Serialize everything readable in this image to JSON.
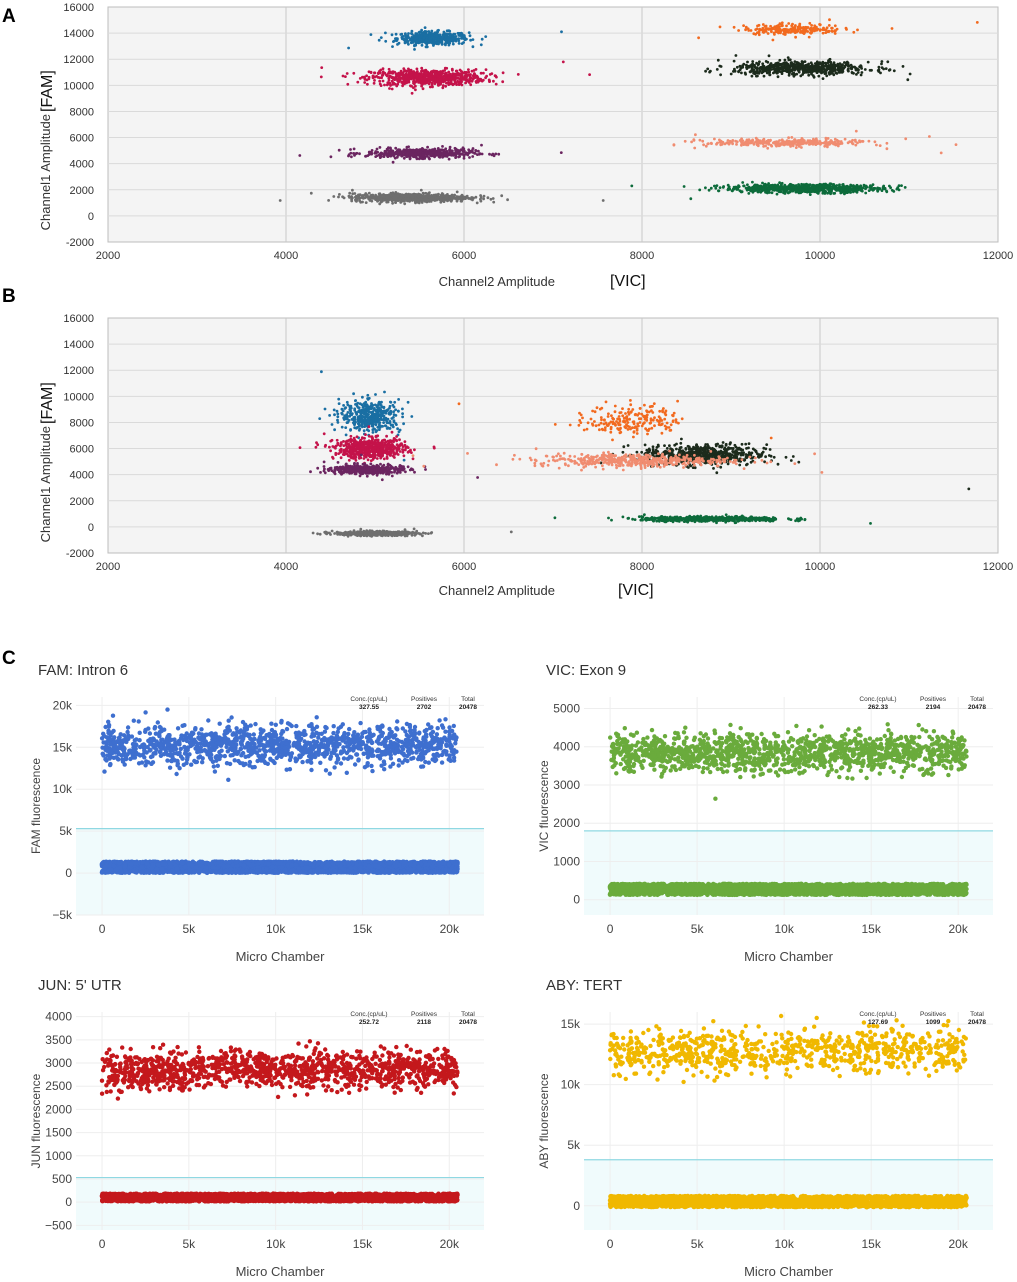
{
  "figure": {
    "panel_letters": [
      "A",
      "B",
      "C"
    ]
  },
  "chart_data": [
    {
      "panel": "A",
      "type": "scatter",
      "xlabel": "Channel2 Amplitude",
      "xlabel_suffix": "[VIC]",
      "ylabel": "Channel1 Amplitude",
      "ylabel_suffix": "[FAM]",
      "xlim": [
        2000,
        12000
      ],
      "ylim": [
        -2000,
        16000
      ],
      "xticks": [
        2000,
        4000,
        6000,
        8000,
        10000,
        12000
      ],
      "yticks": [
        -2000,
        0,
        2000,
        4000,
        6000,
        8000,
        10000,
        12000,
        14000,
        16000
      ],
      "grid": true,
      "clusters": [
        {
          "name": "blue",
          "color": "#1a6fa3",
          "x": 5650,
          "y": 13600,
          "sx": 200,
          "sy": 250,
          "n": 450
        },
        {
          "name": "crimson",
          "color": "#c4134a",
          "x": 5600,
          "y": 10600,
          "sx": 320,
          "sy": 300,
          "n": 700
        },
        {
          "name": "purple",
          "color": "#6b2560",
          "x": 5500,
          "y": 4800,
          "sx": 300,
          "sy": 180,
          "n": 500
        },
        {
          "name": "gray",
          "color": "#6e6e6e",
          "x": 5400,
          "y": 1400,
          "sx": 330,
          "sy": 160,
          "n": 700
        },
        {
          "name": "orange",
          "color": "#f26a1f",
          "x": 9700,
          "y": 14300,
          "sx": 280,
          "sy": 200,
          "n": 200
        },
        {
          "name": "black",
          "color": "#1c2b1c",
          "x": 9800,
          "y": 11300,
          "sx": 380,
          "sy": 250,
          "n": 600
        },
        {
          "name": "salmon",
          "color": "#f08c70",
          "x": 9600,
          "y": 5600,
          "sx": 450,
          "sy": 150,
          "n": 320
        },
        {
          "name": "green",
          "color": "#0d6b3b",
          "x": 9800,
          "y": 2100,
          "sx": 450,
          "sy": 160,
          "n": 700
        }
      ]
    },
    {
      "panel": "B",
      "type": "scatter",
      "xlabel": "Channel2 Amplitude",
      "xlabel_suffix": "[VIC]",
      "ylabel": "Channel1 Amplitude",
      "ylabel_suffix": "[FAM]",
      "xlim": [
        2000,
        12000
      ],
      "ylim": [
        -2000,
        16000
      ],
      "xticks": [
        2000,
        4000,
        6000,
        8000,
        10000,
        12000
      ],
      "yticks": [
        -2000,
        0,
        2000,
        4000,
        6000,
        8000,
        10000,
        12000,
        14000,
        16000
      ],
      "grid": true,
      "clusters": [
        {
          "name": "blue",
          "color": "#1a6fa3",
          "x": 4950,
          "y": 8500,
          "sx": 170,
          "sy": 600,
          "n": 420
        },
        {
          "name": "crimson",
          "color": "#c4134a",
          "x": 4950,
          "y": 6000,
          "sx": 200,
          "sy": 380,
          "n": 600
        },
        {
          "name": "purple",
          "color": "#6b2560",
          "x": 4900,
          "y": 4400,
          "sx": 200,
          "sy": 180,
          "n": 450
        },
        {
          "name": "gray",
          "color": "#6e6e6e",
          "x": 5000,
          "y": -500,
          "sx": 230,
          "sy": 80,
          "n": 500
        },
        {
          "name": "orange",
          "color": "#f26a1f",
          "x": 7900,
          "y": 8200,
          "sx": 260,
          "sy": 600,
          "n": 200
        },
        {
          "name": "black",
          "color": "#1c2b1c",
          "x": 8700,
          "y": 5500,
          "sx": 350,
          "sy": 400,
          "n": 600
        },
        {
          "name": "salmon",
          "color": "#f08c70",
          "x": 7900,
          "y": 5100,
          "sx": 550,
          "sy": 250,
          "n": 450
        },
        {
          "name": "green",
          "color": "#0d6b3b",
          "x": 8800,
          "y": 600,
          "sx": 400,
          "sy": 90,
          "n": 600
        }
      ]
    },
    {
      "panel": "C",
      "type": "scatter",
      "title": "FAM: Intron 6",
      "xlabel": "Micro Chamber",
      "ylabel": "FAM fluorescence",
      "xlim": [
        -1500,
        22000
      ],
      "ylim": [
        -5000,
        21000
      ],
      "xticks": [
        0,
        5000,
        10000,
        15000,
        20000
      ],
      "xticklabels": [
        "0",
        "5k",
        "10k",
        "15k",
        "20k"
      ],
      "yticks": [
        -5000,
        0,
        5000,
        10000,
        15000,
        20000
      ],
      "yticklabels": [
        "−5k",
        "0",
        "5k",
        "10k",
        "15k",
        "20k"
      ],
      "threshold": 5300,
      "color": "#3e6fcf",
      "positives_band": {
        "center": 15200,
        "spread": 2000,
        "n": 1300
      },
      "negatives_band": {
        "center": 700,
        "spread": 650,
        "n": 2400
      },
      "stats_labels": [
        "Conc.(cp/uL)",
        "Positives",
        "Total"
      ],
      "stats_values": [
        "327.55",
        "2702",
        "20478"
      ]
    },
    {
      "panel": "C",
      "type": "scatter",
      "title": "VIC: Exon 9",
      "xlabel": "Micro Chamber",
      "ylabel": "VIC fluorescence",
      "xlim": [
        -1500,
        22000
      ],
      "ylim": [
        -400,
        5300
      ],
      "xticks": [
        0,
        5000,
        10000,
        15000,
        20000
      ],
      "xticklabels": [
        "0",
        "5k",
        "10k",
        "15k",
        "20k"
      ],
      "yticks": [
        0,
        1000,
        2000,
        3000,
        4000,
        5000
      ],
      "yticklabels": [
        "0",
        "1000",
        "2000",
        "3000",
        "4000",
        "5000"
      ],
      "threshold": 1800,
      "color": "#6aab3c",
      "positives_band": {
        "center": 3850,
        "spread": 420,
        "n": 1300
      },
      "negatives_band": {
        "center": 270,
        "spread": 140,
        "n": 2400
      },
      "stats_labels": [
        "Conc.(cp/uL)",
        "Positives",
        "Total"
      ],
      "stats_values": [
        "262.33",
        "2194",
        "20478"
      ]
    },
    {
      "panel": "C",
      "type": "scatter",
      "title": "JUN: 5' UTR",
      "xlabel": "Micro Chamber",
      "ylabel": "JUN fluorescence",
      "xlim": [
        -1500,
        22000
      ],
      "ylim": [
        -600,
        4100
      ],
      "xticks": [
        0,
        5000,
        10000,
        15000,
        20000
      ],
      "xticklabels": [
        "0",
        "5k",
        "10k",
        "15k",
        "20k"
      ],
      "yticks": [
        -500,
        0,
        500,
        1000,
        1500,
        2000,
        2500,
        3000,
        3500,
        4000
      ],
      "yticklabels": [
        "−500",
        "0",
        "500",
        "1000",
        "1500",
        "2000",
        "2500",
        "3000",
        "3500",
        "4000"
      ],
      "threshold": 530,
      "color": "#c4181c",
      "positives_band": {
        "center": 2850,
        "spread": 340,
        "n": 1200
      },
      "negatives_band": {
        "center": 100,
        "spread": 80,
        "n": 2400
      },
      "stats_labels": [
        "Conc.(cp/uL)",
        "Positives",
        "Total"
      ],
      "stats_values": [
        "252.72",
        "2118",
        "20478"
      ]
    },
    {
      "panel": "C",
      "type": "scatter",
      "title": "ABY: TERT",
      "xlabel": "Micro Chamber",
      "ylabel": "ABY fluorescence",
      "xlim": [
        -1500,
        22000
      ],
      "ylim": [
        -2000,
        16000
      ],
      "xticks": [
        0,
        5000,
        10000,
        15000,
        20000
      ],
      "xticklabels": [
        "0",
        "5k",
        "10k",
        "15k",
        "20k"
      ],
      "yticks": [
        0,
        5000,
        10000,
        15000
      ],
      "yticklabels": [
        "0",
        "5k",
        "10k",
        "15k"
      ],
      "threshold": 3800,
      "color": "#f0b800",
      "positives_band": {
        "center": 12800,
        "spread": 1500,
        "n": 800
      },
      "negatives_band": {
        "center": 350,
        "spread": 450,
        "n": 2200
      },
      "stats_labels": [
        "Conc.(cp/uL)",
        "Positives",
        "Total"
      ],
      "stats_values": [
        "127.69",
        "1099",
        "20478"
      ]
    }
  ]
}
